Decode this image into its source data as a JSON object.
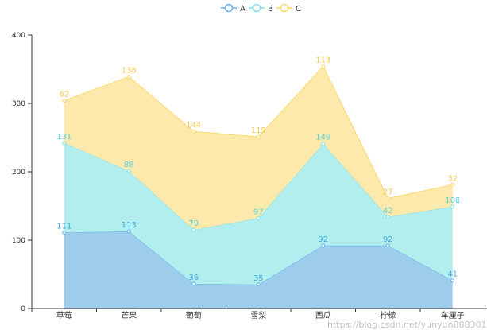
{
  "chart_data": {
    "type": "area",
    "stacked": true,
    "categories": [
      "草莓",
      "芒果",
      "葡萄",
      "雪梨",
      "西瓜",
      "柠檬",
      "车厘子"
    ],
    "series": [
      {
        "name": "A",
        "values": [
          111,
          113,
          36,
          35,
          92,
          92,
          41
        ],
        "line": "#5ab1ef",
        "fill": "#9dcdeb",
        "label": "#3ea7dc"
      },
      {
        "name": "B",
        "values": [
          131,
          88,
          79,
          97,
          149,
          42,
          108
        ],
        "line": "#7ee0e6",
        "fill": "#b2eeee",
        "label": "#56d2dc"
      },
      {
        "name": "C",
        "values": [
          62,
          138,
          144,
          119,
          113,
          27,
          32
        ],
        "line": "#fcd86a",
        "fill": "#fee9ad",
        "label": "#f5c94c"
      }
    ],
    "yticks": [
      0,
      100,
      200,
      300,
      400
    ],
    "ylim": [
      0,
      400
    ],
    "legend": "top-center",
    "grid": false
  },
  "watermark": "https://blog.csdn.net/yunyun888301"
}
